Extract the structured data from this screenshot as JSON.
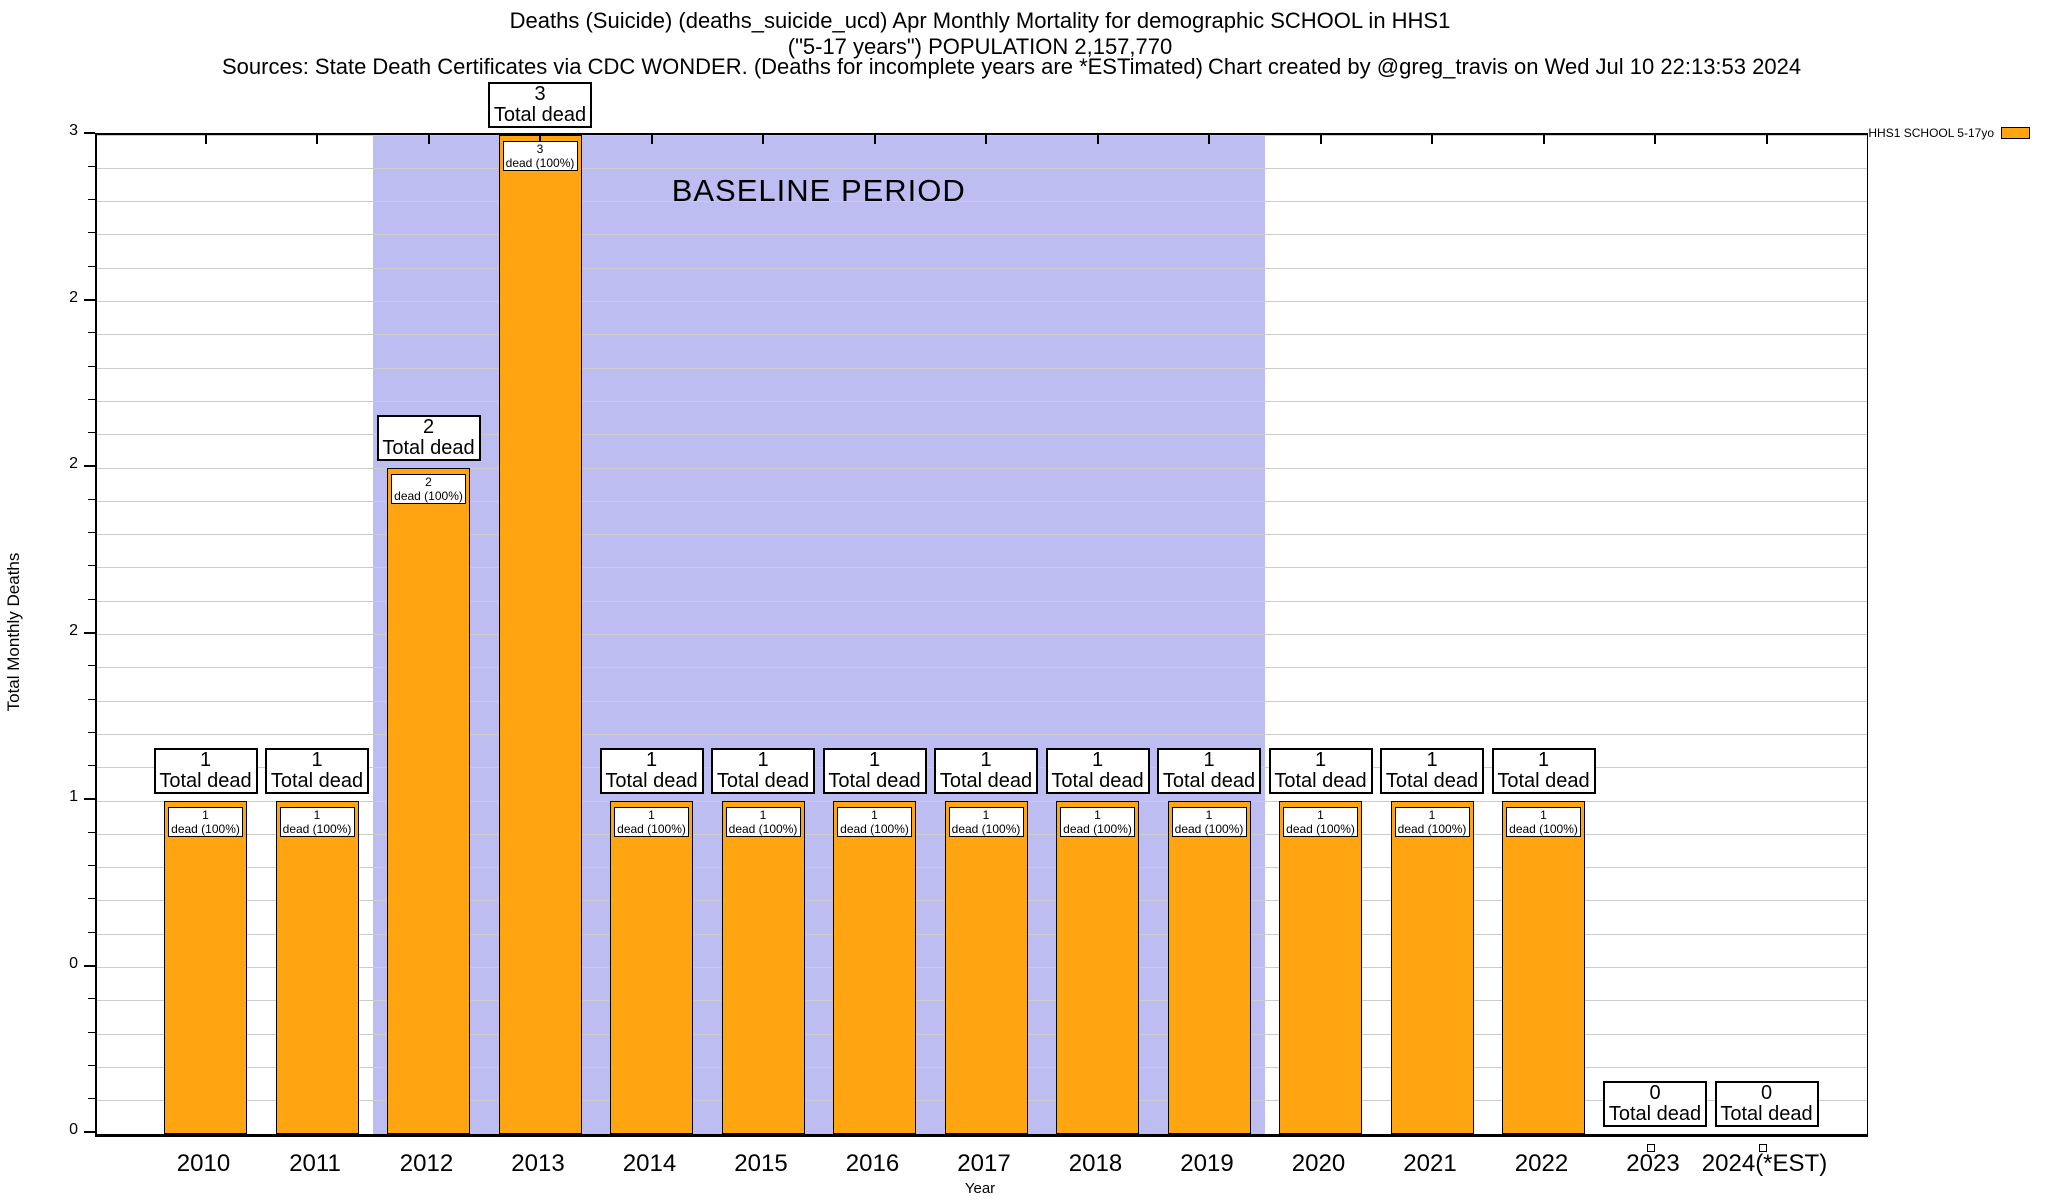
{
  "header": {
    "title_line1": "Deaths (Suicide) (deaths_suicide_ucd) Apr Monthly Mortality for demographic SCHOOL in HHS1",
    "title_line2": "(\"5-17 years\") POPULATION 2,157,770",
    "sources": "Sources: State Death Certificates via CDC WONDER. (Deaths for incomplete years are *ESTimated)",
    "credit": "Chart created by @greg_travis on Wed Jul 10 22:13:53 2024"
  },
  "legend": {
    "label": "HHS1 SCHOOL 5-17yo",
    "swatch_color": "#FFA512"
  },
  "axes": {
    "y_label": "Total Monthly Deaths",
    "x_label": "Year",
    "y_ticks": [
      {
        "value": 3,
        "label": "3"
      },
      {
        "value": 2.5,
        "label": "2"
      },
      {
        "value": 2,
        "label": "2"
      },
      {
        "value": 1.5,
        "label": "2"
      },
      {
        "value": 1,
        "label": "1"
      },
      {
        "value": 0.5,
        "label": "0"
      },
      {
        "value": 0,
        "label": "0"
      }
    ]
  },
  "baseline": {
    "label": "BASELINE PERIOD",
    "from": "2012",
    "to": "2019",
    "fill": "#BDBDF2"
  },
  "chart_data": {
    "type": "bar",
    "title": "Deaths (Suicide) (deaths_suicide_ucd) Apr Monthly Mortality for demographic SCHOOL in HHS1 (\"5-17 years\") POPULATION 2,157,770",
    "xlabel": "Year",
    "ylabel": "Total Monthly Deaths",
    "categories": [
      "2010",
      "2011",
      "2012",
      "2013",
      "2014",
      "2015",
      "2016",
      "2017",
      "2018",
      "2019",
      "2020",
      "2021",
      "2022",
      "2023",
      "2024(*EST)"
    ],
    "values": [
      1,
      1,
      2,
      3,
      1,
      1,
      1,
      1,
      1,
      1,
      1,
      1,
      1,
      0,
      0
    ],
    "series_name": "HHS1 SCHOOL 5-17yo",
    "bar_color": "#FFA512",
    "ylim": [
      0,
      3
    ],
    "y_major_tick_step": 0.5,
    "y_minor_tick_step": 0.1,
    "grid": true,
    "legend_position": "top-right",
    "bar_annotation_top": "Total dead",
    "bar_annotation_inner": "dead (100%)",
    "baseline_period": {
      "from": "2012",
      "to": "2019",
      "label": "BASELINE PERIOD",
      "fill": "#BDBDF2"
    }
  }
}
